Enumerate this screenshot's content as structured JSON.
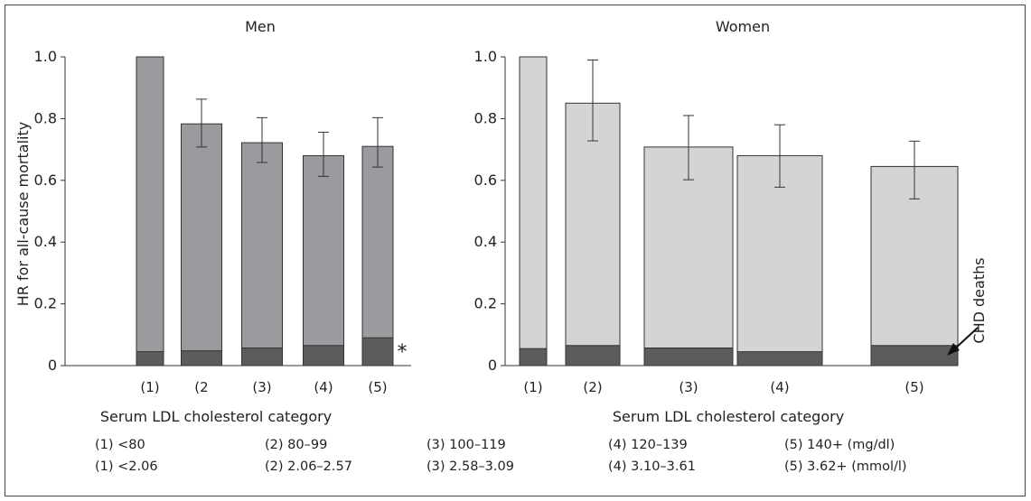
{
  "chart_data": [
    {
      "type": "bar",
      "title": "Men",
      "xlabel": "Serum LDL cholesterol category",
      "ylabel": "HR for all-cause mortality",
      "ylim": [
        0,
        1.0
      ],
      "yticks": [
        "0",
        "0.2",
        "0.4",
        "0.6",
        "0.8",
        "1.0"
      ],
      "categories": [
        "(1)",
        "(2",
        "(3)",
        "(4)",
        "(5)"
      ],
      "series": [
        {
          "name": "CHD deaths",
          "values": [
            0.045,
            0.048,
            0.057,
            0.065,
            0.09
          ],
          "color": "#5c5c5c"
        },
        {
          "values": [
            1.0,
            0.783,
            0.722,
            0.68,
            0.71
          ],
          "error_low": [
            null,
            0.708,
            0.658,
            0.613,
            0.643
          ],
          "error_high": [
            null,
            0.863,
            0.803,
            0.756,
            0.803
          ],
          "color": "#9a9b9f"
        }
      ],
      "annotations": [
        "*"
      ]
    },
    {
      "type": "bar",
      "title": "Women",
      "xlabel": "Serum LDL cholesterol category",
      "ylabel": "",
      "ylim": [
        0,
        1.0
      ],
      "yticks": [
        "0",
        "0.2",
        "0.4",
        "0.6",
        "0.8",
        "1.0"
      ],
      "categories": [
        "(1)",
        "(2)",
        "(3)",
        "(4)",
        "(5)"
      ],
      "series": [
        {
          "name": "CHD deaths",
          "values": [
            0.055,
            0.065,
            0.057,
            0.045,
            0.065
          ],
          "color": "#5c5c5c"
        },
        {
          "values": [
            1.0,
            0.85,
            0.708,
            0.68,
            0.645
          ],
          "error_low": [
            null,
            0.728,
            0.602,
            0.578,
            0.54
          ],
          "error_high": [
            null,
            0.99,
            0.81,
            0.78,
            0.727
          ],
          "color": "#d3d4d6"
        }
      ],
      "annotations": [
        "CHD deaths"
      ]
    }
  ],
  "legend_rows": [
    [
      "(1) <80",
      "(2) 80–99",
      "(3) 100–119",
      "(4) 120–139",
      "(5) 140+ (mg/dl)"
    ],
    [
      "(1) <2.06",
      "(2) 2.06–2.57",
      "(3) 2.58–3.09",
      "(4) 3.10–3.61",
      "(5) 3.62+ (mmol/l)"
    ]
  ]
}
